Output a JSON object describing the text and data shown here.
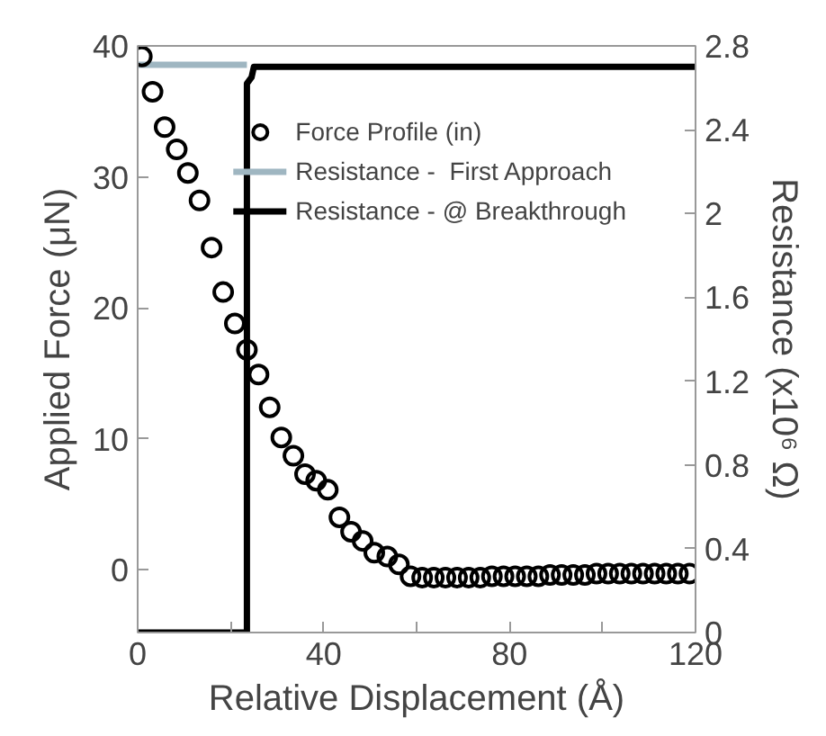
{
  "chart_data": {
    "type": "scatter",
    "xlabel": "Relative Displacement (Å)",
    "ylabel": "Applied Force (μN)",
    "y2label": "Resistance (x10⁶ Ω)",
    "xlim": [
      0,
      120
    ],
    "xticks": [
      0,
      {
        "value": 20,
        "label": null
      },
      40,
      {
        "value": 60,
        "label": null
      },
      80,
      {
        "value": 100,
        "label": null
      },
      120
    ],
    "ylim": [
      -4.8,
      40
    ],
    "yticks": [
      0,
      10,
      20,
      30,
      40
    ],
    "y2lim": [
      0,
      2.8
    ],
    "y2ticks": [
      0,
      0.4,
      0.8,
      1.2,
      1.6,
      2,
      2.4,
      2.8
    ],
    "grid": false,
    "legend": "top right",
    "series": [
      {
        "name": "Force Profile (in)",
        "marker": "circle",
        "color": "#000000",
        "x": [
          0.9,
          3.2,
          5.8,
          8.4,
          10.8,
          13.3,
          15.9,
          18.4,
          20.9,
          23.5,
          26.0,
          28.4,
          30.9,
          33.5,
          36.0,
          38.4,
          40.9,
          43.4,
          45.9,
          48.4,
          50.9,
          53.7,
          56.2,
          58.7,
          61.2,
          63.7,
          66.2,
          68.7,
          71.2,
          73.7,
          76.2,
          78.7,
          81.2,
          83.7,
          86.2,
          88.7,
          91.2,
          93.7,
          96.2,
          98.7,
          101.2,
          103.7,
          106.2,
          108.7,
          111.2,
          113.7,
          116.2,
          118.7
        ],
        "values": [
          39.2,
          36.5,
          33.8,
          32.1,
          30.3,
          28.2,
          24.6,
          21.2,
          18.8,
          16.8,
          14.9,
          12.4,
          10.1,
          8.7,
          7.3,
          6.8,
          6.1,
          4.0,
          2.9,
          2.2,
          1.3,
          1.0,
          0.4,
          -0.5,
          -0.6,
          -0.6,
          -0.6,
          -0.6,
          -0.6,
          -0.6,
          -0.5,
          -0.5,
          -0.5,
          -0.5,
          -0.5,
          -0.4,
          -0.4,
          -0.4,
          -0.4,
          -0.3,
          -0.3,
          -0.3,
          -0.3,
          -0.3,
          -0.3,
          -0.3,
          -0.3,
          -0.3
        ]
      },
      {
        "name": "Resistance -  First Approach",
        "type": "line",
        "axis": "y2",
        "color": "#9fb6c1",
        "x": [
          0,
          23.5
        ],
        "values": [
          2.71,
          2.71
        ]
      },
      {
        "name": "Resistance - @ Breakthrough",
        "type": "line",
        "axis": "y2",
        "color": "#000000",
        "x": [
          0,
          23.5,
          23.5,
          24.5,
          25,
          120
        ],
        "values": [
          0,
          0,
          2.62,
          2.65,
          2.7,
          2.7
        ]
      }
    ]
  }
}
